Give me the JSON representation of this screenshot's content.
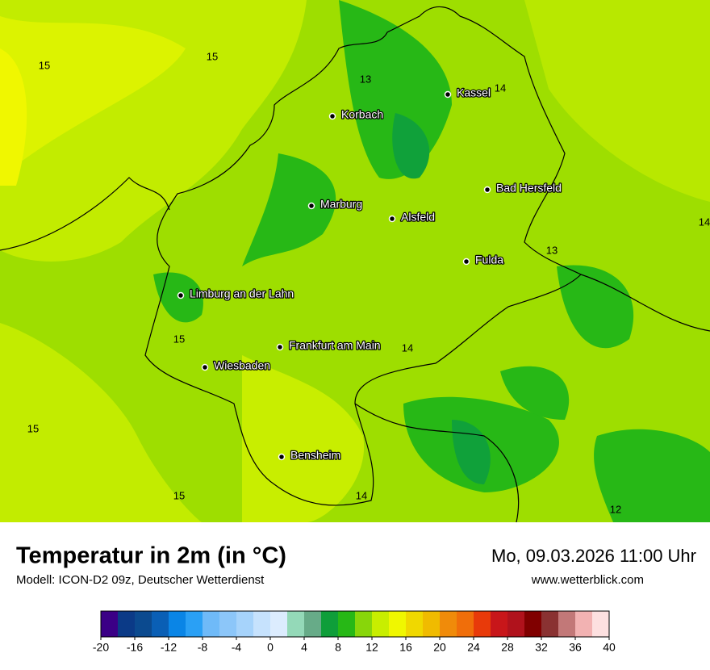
{
  "header": {
    "title": "Temperatur in 2m (in °C)",
    "subtitle": "Modell: ICON-D2 09z, Deutscher Wetterdienst",
    "datetime": "Mo, 09.03.2026 11:00 Uhr",
    "website": "www.wetterblick.com"
  },
  "cities": [
    "Kassel",
    "Korbach",
    "Bad Hersfeld",
    "Marburg",
    "Alsfeld",
    "Fulda",
    "Limburg an der Lahn",
    "Frankfurt am Main",
    "Wiesbaden",
    "Bensheim"
  ],
  "isoline_labels": [
    15,
    15,
    13,
    14,
    14,
    13,
    15,
    14,
    15,
    15,
    14,
    12
  ],
  "colorbar": {
    "ticks": [
      -20,
      -16,
      -12,
      -8,
      -4,
      0,
      4,
      8,
      12,
      16,
      20,
      24,
      28,
      32,
      36,
      40
    ],
    "colors": [
      "#3b0086",
      "#0b3a87",
      "#0b4a8f",
      "#0a5fb5",
      "#0a85e6",
      "#2aa0f5",
      "#6fbaf8",
      "#8cc6f9",
      "#a6d3fb",
      "#c6e2fd",
      "#dcecfe",
      "#94d9b8",
      "#67ab88",
      "#0f9e3a",
      "#27b816",
      "#88d60a",
      "#c8ee00",
      "#f0f700",
      "#f0d800",
      "#f0bb00",
      "#f08b0a",
      "#f06e0a",
      "#e83a0a",
      "#c8161a",
      "#b0121c",
      "#800000",
      "#8a3232",
      "#c27878",
      "#f2b2b2",
      "#fde0e0"
    ]
  }
}
